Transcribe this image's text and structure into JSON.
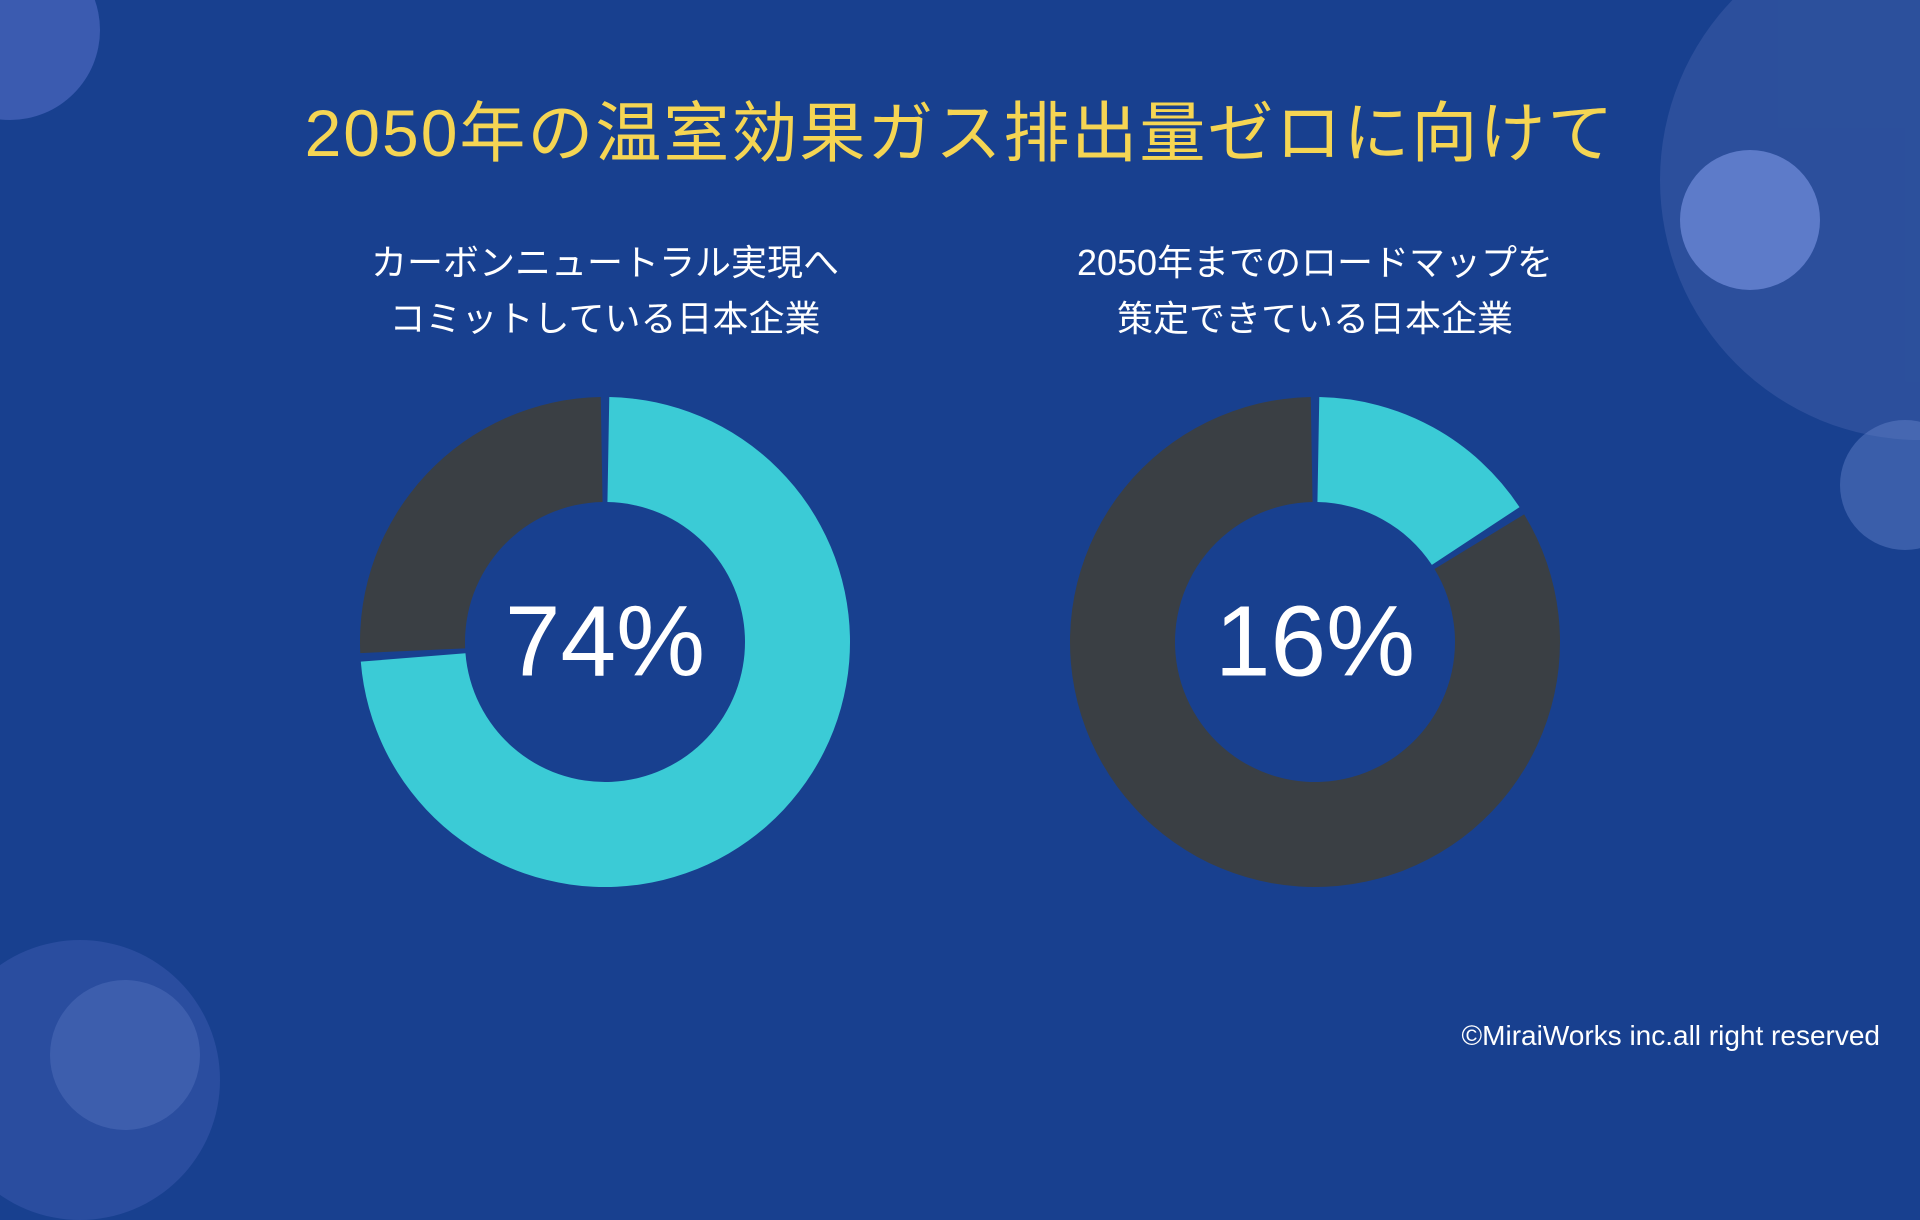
{
  "background_color": "#18408f",
  "title": {
    "text": "2050年の温室効果ガス排出量ゼロに向けて",
    "color": "#f5d553",
    "fontsize": 66
  },
  "charts": [
    {
      "subtitle_line1": "カーボンニュートラル実現へ",
      "subtitle_line2": "コミットしている日本企業",
      "type": "donut",
      "value": 74,
      "display": "74%",
      "start_angle_deg": 0,
      "primary_color": "#3bcbd6",
      "secondary_color": "#3a3f44",
      "inner_radius": 140,
      "outer_radius": 245,
      "gap_deg": 2,
      "center_text_color": "#ffffff",
      "center_fontsize": 100
    },
    {
      "subtitle_line1": "2050年までのロードマップを",
      "subtitle_line2": "策定できている日本企業",
      "type": "donut",
      "value": 16,
      "display": "16%",
      "start_angle_deg": 0,
      "primary_color": "#3bcbd6",
      "secondary_color": "#3a3f44",
      "inner_radius": 140,
      "outer_radius": 245,
      "gap_deg": 2,
      "center_text_color": "#ffffff",
      "center_fontsize": 100
    }
  ],
  "subtitle_style": {
    "color": "#ffffff",
    "fontsize": 36
  },
  "decorative_circles": [
    {
      "name": "top-left",
      "color": "#3b5bb0"
    },
    {
      "name": "top-right-large",
      "color": "rgba(82,110,180,0.35)"
    },
    {
      "name": "top-right-small",
      "color": "#5d7bc9"
    },
    {
      "name": "right-mid",
      "color": "rgba(110,140,210,0.4)"
    },
    {
      "name": "bottom-left-small",
      "color": "rgba(85,115,190,0.45)"
    },
    {
      "name": "bottom-left-large",
      "color": "rgba(60,90,175,0.5)"
    }
  ],
  "copyright": "©MiraiWorks inc.all right reserved"
}
